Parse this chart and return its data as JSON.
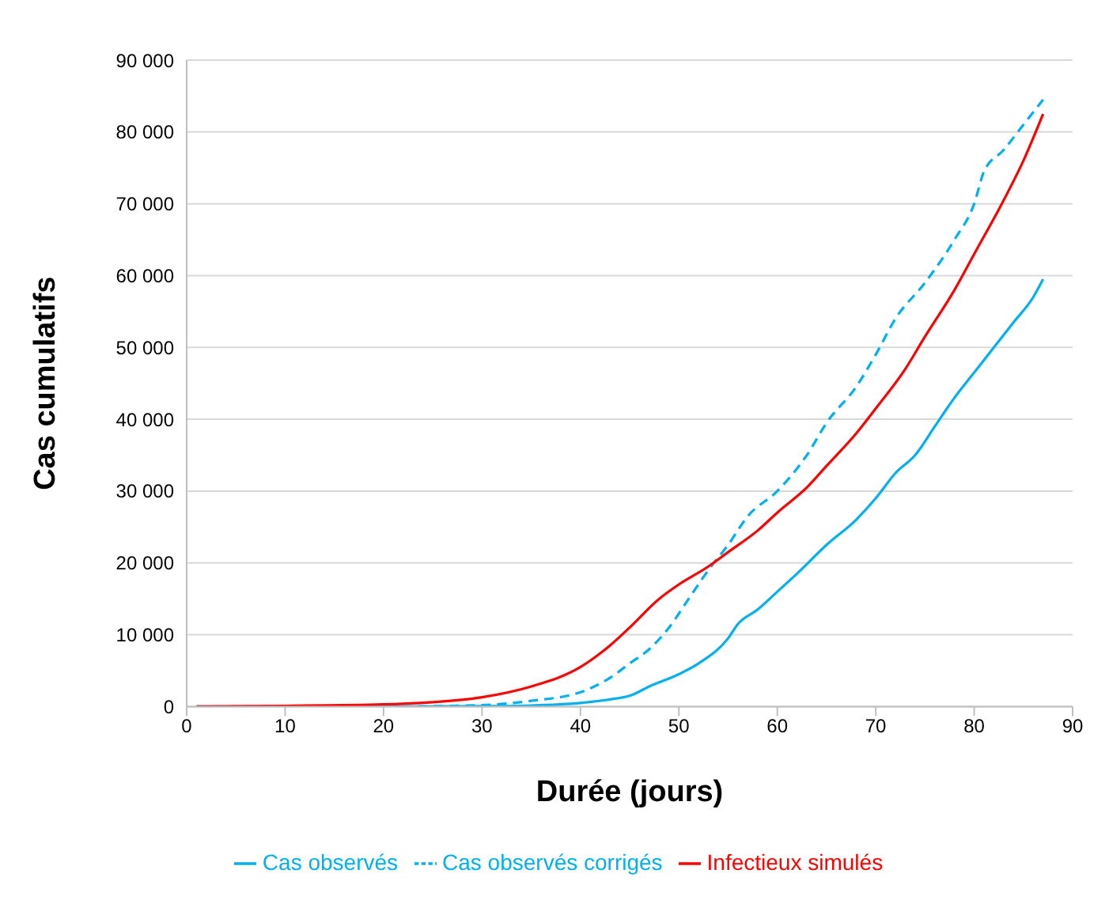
{
  "chart_data": {
    "type": "line",
    "xlabel": "Durée (jours)",
    "ylabel": "Cas cumulatifs",
    "xlim": [
      0,
      90
    ],
    "xticks": [
      0,
      10,
      20,
      30,
      40,
      50,
      60,
      70,
      80,
      90
    ],
    "ylim": [
      0,
      90000
    ],
    "yticks": [
      {
        "value": 0,
        "label": "0"
      },
      {
        "value": 10000,
        "label": "10 000"
      },
      {
        "value": 20000,
        "label": "20 000"
      },
      {
        "value": 30000,
        "label": "30 000"
      },
      {
        "value": 40000,
        "label": "40 000"
      },
      {
        "value": 50000,
        "label": "50 000"
      },
      {
        "value": 60000,
        "label": "60 000"
      },
      {
        "value": 70000,
        "label": "70 000"
      },
      {
        "value": 80000,
        "label": "80 000"
      },
      {
        "value": 90000,
        "label": "90 000"
      }
    ],
    "grid": "y",
    "legend": "bottom",
    "marker": "none",
    "series": [
      {
        "name": "Cas observés",
        "color": "#00b0f0",
        "line_style": "solid",
        "x": [
          1,
          10,
          20,
          30,
          35,
          40,
          43,
          45,
          47,
          50,
          52,
          55,
          56,
          58,
          60,
          62,
          65,
          68,
          70,
          72,
          74,
          76,
          78,
          80,
          82,
          84,
          86,
          87
        ],
        "values": [
          0,
          0,
          0,
          50,
          150,
          500,
          1000,
          1500,
          2800,
          4500,
          6000,
          9500,
          11500,
          13500,
          16000,
          18500,
          22500,
          26000,
          29000,
          32500,
          35000,
          39000,
          43000,
          46500,
          50000,
          53500,
          57000,
          59500
        ]
      },
      {
        "name": "Cas observés corrigés",
        "color": "#00b0f0",
        "line_style": "dashed",
        "x": [
          1,
          10,
          20,
          30,
          35,
          40,
          43,
          45,
          47,
          49,
          51,
          53,
          55,
          57,
          60,
          63,
          65,
          68,
          70,
          72,
          75,
          78,
          80,
          81,
          83,
          85,
          87
        ],
        "values": [
          0,
          0,
          0,
          200,
          800,
          2000,
          4000,
          6000,
          8000,
          11000,
          15000,
          19000,
          22500,
          26500,
          30000,
          35000,
          39500,
          44500,
          49000,
          54000,
          59000,
          65000,
          70000,
          74500,
          77500,
          81000,
          84500
        ]
      },
      {
        "name": "Infectieux simulés",
        "color": "#ff0000",
        "line_style": "solid",
        "x": [
          1,
          10,
          20,
          25,
          30,
          35,
          40,
          43,
          45,
          48,
          50,
          53,
          55,
          58,
          60,
          63,
          65,
          68,
          70,
          73,
          75,
          78,
          80,
          83,
          85,
          87
        ],
        "values": [
          0,
          100,
          300,
          600,
          1300,
          2800,
          5500,
          8500,
          11000,
          15000,
          17000,
          19500,
          21500,
          24500,
          27000,
          30500,
          33500,
          38000,
          41500,
          47000,
          51500,
          58000,
          63000,
          70500,
          76000,
          82500
        ]
      }
    ]
  }
}
